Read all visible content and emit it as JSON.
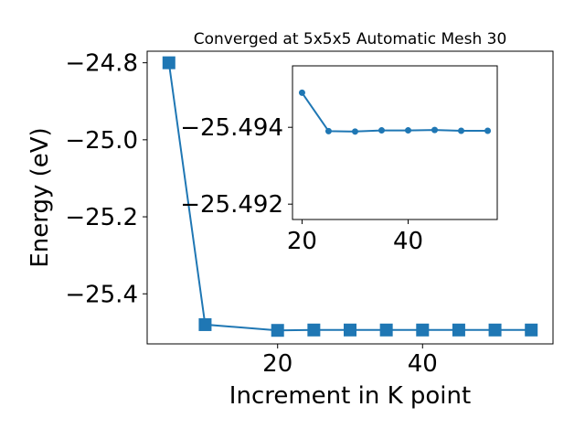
{
  "chart_data": [
    {
      "type": "line",
      "title": "Converged at 5x5x5 Automatic Mesh 30",
      "xlabel": "Increment in K point",
      "ylabel": "Energy (eV)",
      "xlim": [
        2,
        58
      ],
      "ylim": [
        -25.53,
        -24.77
      ],
      "xticks": [
        20,
        40
      ],
      "xtick_labels": [
        "20",
        "40"
      ],
      "yticks": [
        -24.8,
        -25.0,
        -25.2,
        -25.4
      ],
      "ytick_labels": [
        "−24.8",
        "−25.0",
        "−25.2",
        "−25.4"
      ],
      "grid": false,
      "marker": "square",
      "color": "#1f77b4",
      "series": [
        {
          "x": [
            5,
            10,
            20,
            25,
            30,
            35,
            40,
            45,
            50,
            55
          ],
          "values": [
            -24.8,
            -25.48,
            -25.4949,
            -25.4939,
            -25.4939,
            -25.4939,
            -25.4939,
            -25.4939,
            -25.4939,
            -25.4939
          ]
        }
      ]
    },
    {
      "type": "line",
      "title": "",
      "xlabel": "",
      "ylabel": "",
      "inset": true,
      "xlim": [
        18.2,
        56.8
      ],
      "ylim": [
        -25.4916,
        -25.4956
      ],
      "xticks": [
        20,
        40
      ],
      "xtick_labels": [
        "20",
        "40"
      ],
      "yticks": [
        -25.494,
        -25.492
      ],
      "ytick_labels": [
        "−25.494",
        "−25.492"
      ],
      "grid": false,
      "marker": "circle",
      "color": "#1f77b4",
      "series": [
        {
          "x": [
            20,
            25,
            30,
            35,
            40,
            45,
            50,
            55
          ],
          "values": [
            -25.4949,
            -25.4939,
            -25.49389,
            -25.49392,
            -25.49392,
            -25.49393,
            -25.49391,
            -25.49391
          ]
        }
      ]
    }
  ]
}
